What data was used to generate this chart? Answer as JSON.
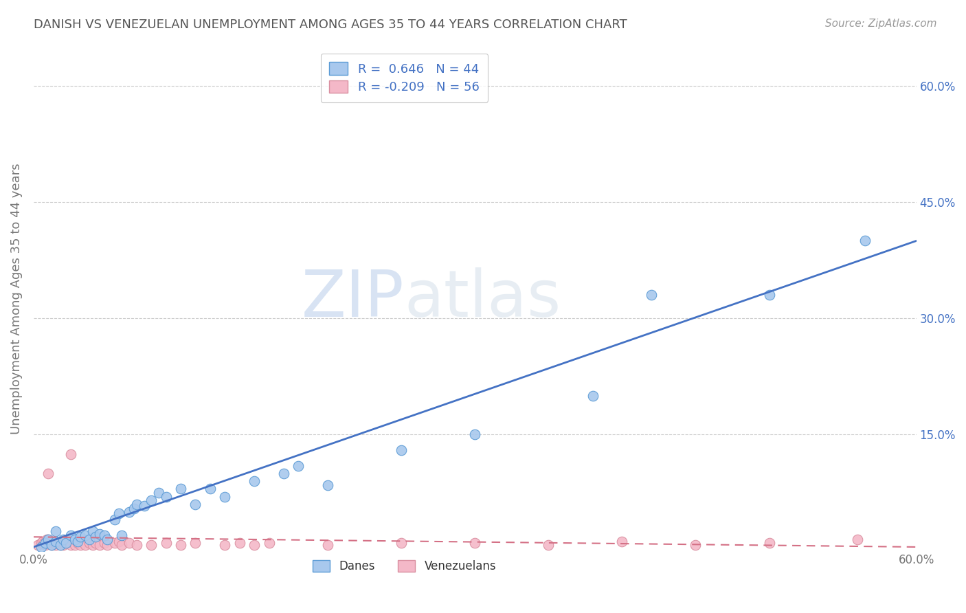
{
  "title": "DANISH VS VENEZUELAN UNEMPLOYMENT AMONG AGES 35 TO 44 YEARS CORRELATION CHART",
  "source": "Source: ZipAtlas.com",
  "ylabel": "Unemployment Among Ages 35 to 44 years",
  "xlim": [
    0.0,
    0.6
  ],
  "ylim": [
    0.0,
    0.65
  ],
  "ytick_positions": [
    0.0,
    0.15,
    0.3,
    0.45,
    0.6
  ],
  "ytick_labels_right": [
    "",
    "15.0%",
    "30.0%",
    "45.0%",
    "60.0%"
  ],
  "danes_R": 0.646,
  "danes_N": 44,
  "venezuelans_R": -0.209,
  "venezuelans_N": 56,
  "danes_color": "#a8c8ed",
  "danes_edge_color": "#5b9bd5",
  "venezuelans_color": "#f4b8c8",
  "venezuelans_edge_color": "#d98fa0",
  "trend_danes_color": "#4472c4",
  "trend_venezuelans_color": "#d47085",
  "danes_x": [
    0.005,
    0.008,
    0.01,
    0.012,
    0.015,
    0.015,
    0.018,
    0.02,
    0.022,
    0.025,
    0.028,
    0.03,
    0.032,
    0.035,
    0.038,
    0.04,
    0.042,
    0.045,
    0.048,
    0.05,
    0.055,
    0.058,
    0.06,
    0.065,
    0.068,
    0.07,
    0.075,
    0.08,
    0.085,
    0.09,
    0.1,
    0.11,
    0.12,
    0.13,
    0.15,
    0.17,
    0.18,
    0.2,
    0.25,
    0.3,
    0.38,
    0.42,
    0.5,
    0.565
  ],
  "danes_y": [
    0.005,
    0.01,
    0.015,
    0.008,
    0.012,
    0.025,
    0.008,
    0.015,
    0.01,
    0.02,
    0.015,
    0.012,
    0.018,
    0.02,
    0.015,
    0.025,
    0.018,
    0.022,
    0.02,
    0.015,
    0.04,
    0.048,
    0.02,
    0.05,
    0.055,
    0.06,
    0.058,
    0.065,
    0.075,
    0.07,
    0.08,
    0.06,
    0.08,
    0.07,
    0.09,
    0.1,
    0.11,
    0.085,
    0.13,
    0.15,
    0.2,
    0.33,
    0.33,
    0.4
  ],
  "venezuelans_x": [
    0.003,
    0.005,
    0.006,
    0.007,
    0.008,
    0.009,
    0.01,
    0.01,
    0.01,
    0.01,
    0.012,
    0.013,
    0.015,
    0.015,
    0.015,
    0.015,
    0.018,
    0.018,
    0.02,
    0.02,
    0.02,
    0.022,
    0.022,
    0.025,
    0.025,
    0.028,
    0.03,
    0.032,
    0.035,
    0.038,
    0.04,
    0.042,
    0.045,
    0.048,
    0.05,
    0.055,
    0.058,
    0.06,
    0.065,
    0.07,
    0.08,
    0.09,
    0.1,
    0.11,
    0.13,
    0.14,
    0.15,
    0.16,
    0.2,
    0.25,
    0.3,
    0.35,
    0.4,
    0.45,
    0.5,
    0.56
  ],
  "venezuelans_y": [
    0.008,
    0.01,
    0.012,
    0.01,
    0.008,
    0.015,
    0.01,
    0.012,
    0.015,
    0.1,
    0.008,
    0.01,
    0.008,
    0.01,
    0.012,
    0.01,
    0.008,
    0.01,
    0.008,
    0.01,
    0.012,
    0.012,
    0.01,
    0.008,
    0.125,
    0.008,
    0.01,
    0.008,
    0.008,
    0.01,
    0.008,
    0.01,
    0.008,
    0.01,
    0.008,
    0.01,
    0.012,
    0.008,
    0.01,
    0.008,
    0.008,
    0.01,
    0.008,
    0.01,
    0.008,
    0.01,
    0.008,
    0.01,
    0.008,
    0.01,
    0.01,
    0.008,
    0.012,
    0.008,
    0.01,
    0.015
  ],
  "watermark_zip": "ZIP",
  "watermark_atlas": "atlas",
  "trend_danes_x0": 0.0,
  "trend_danes_y0": 0.005,
  "trend_danes_x1": 0.6,
  "trend_danes_y1": 0.4,
  "trend_venz_x0": 0.0,
  "trend_venz_y0": 0.018,
  "trend_venz_x1": 0.6,
  "trend_venz_y1": 0.005
}
